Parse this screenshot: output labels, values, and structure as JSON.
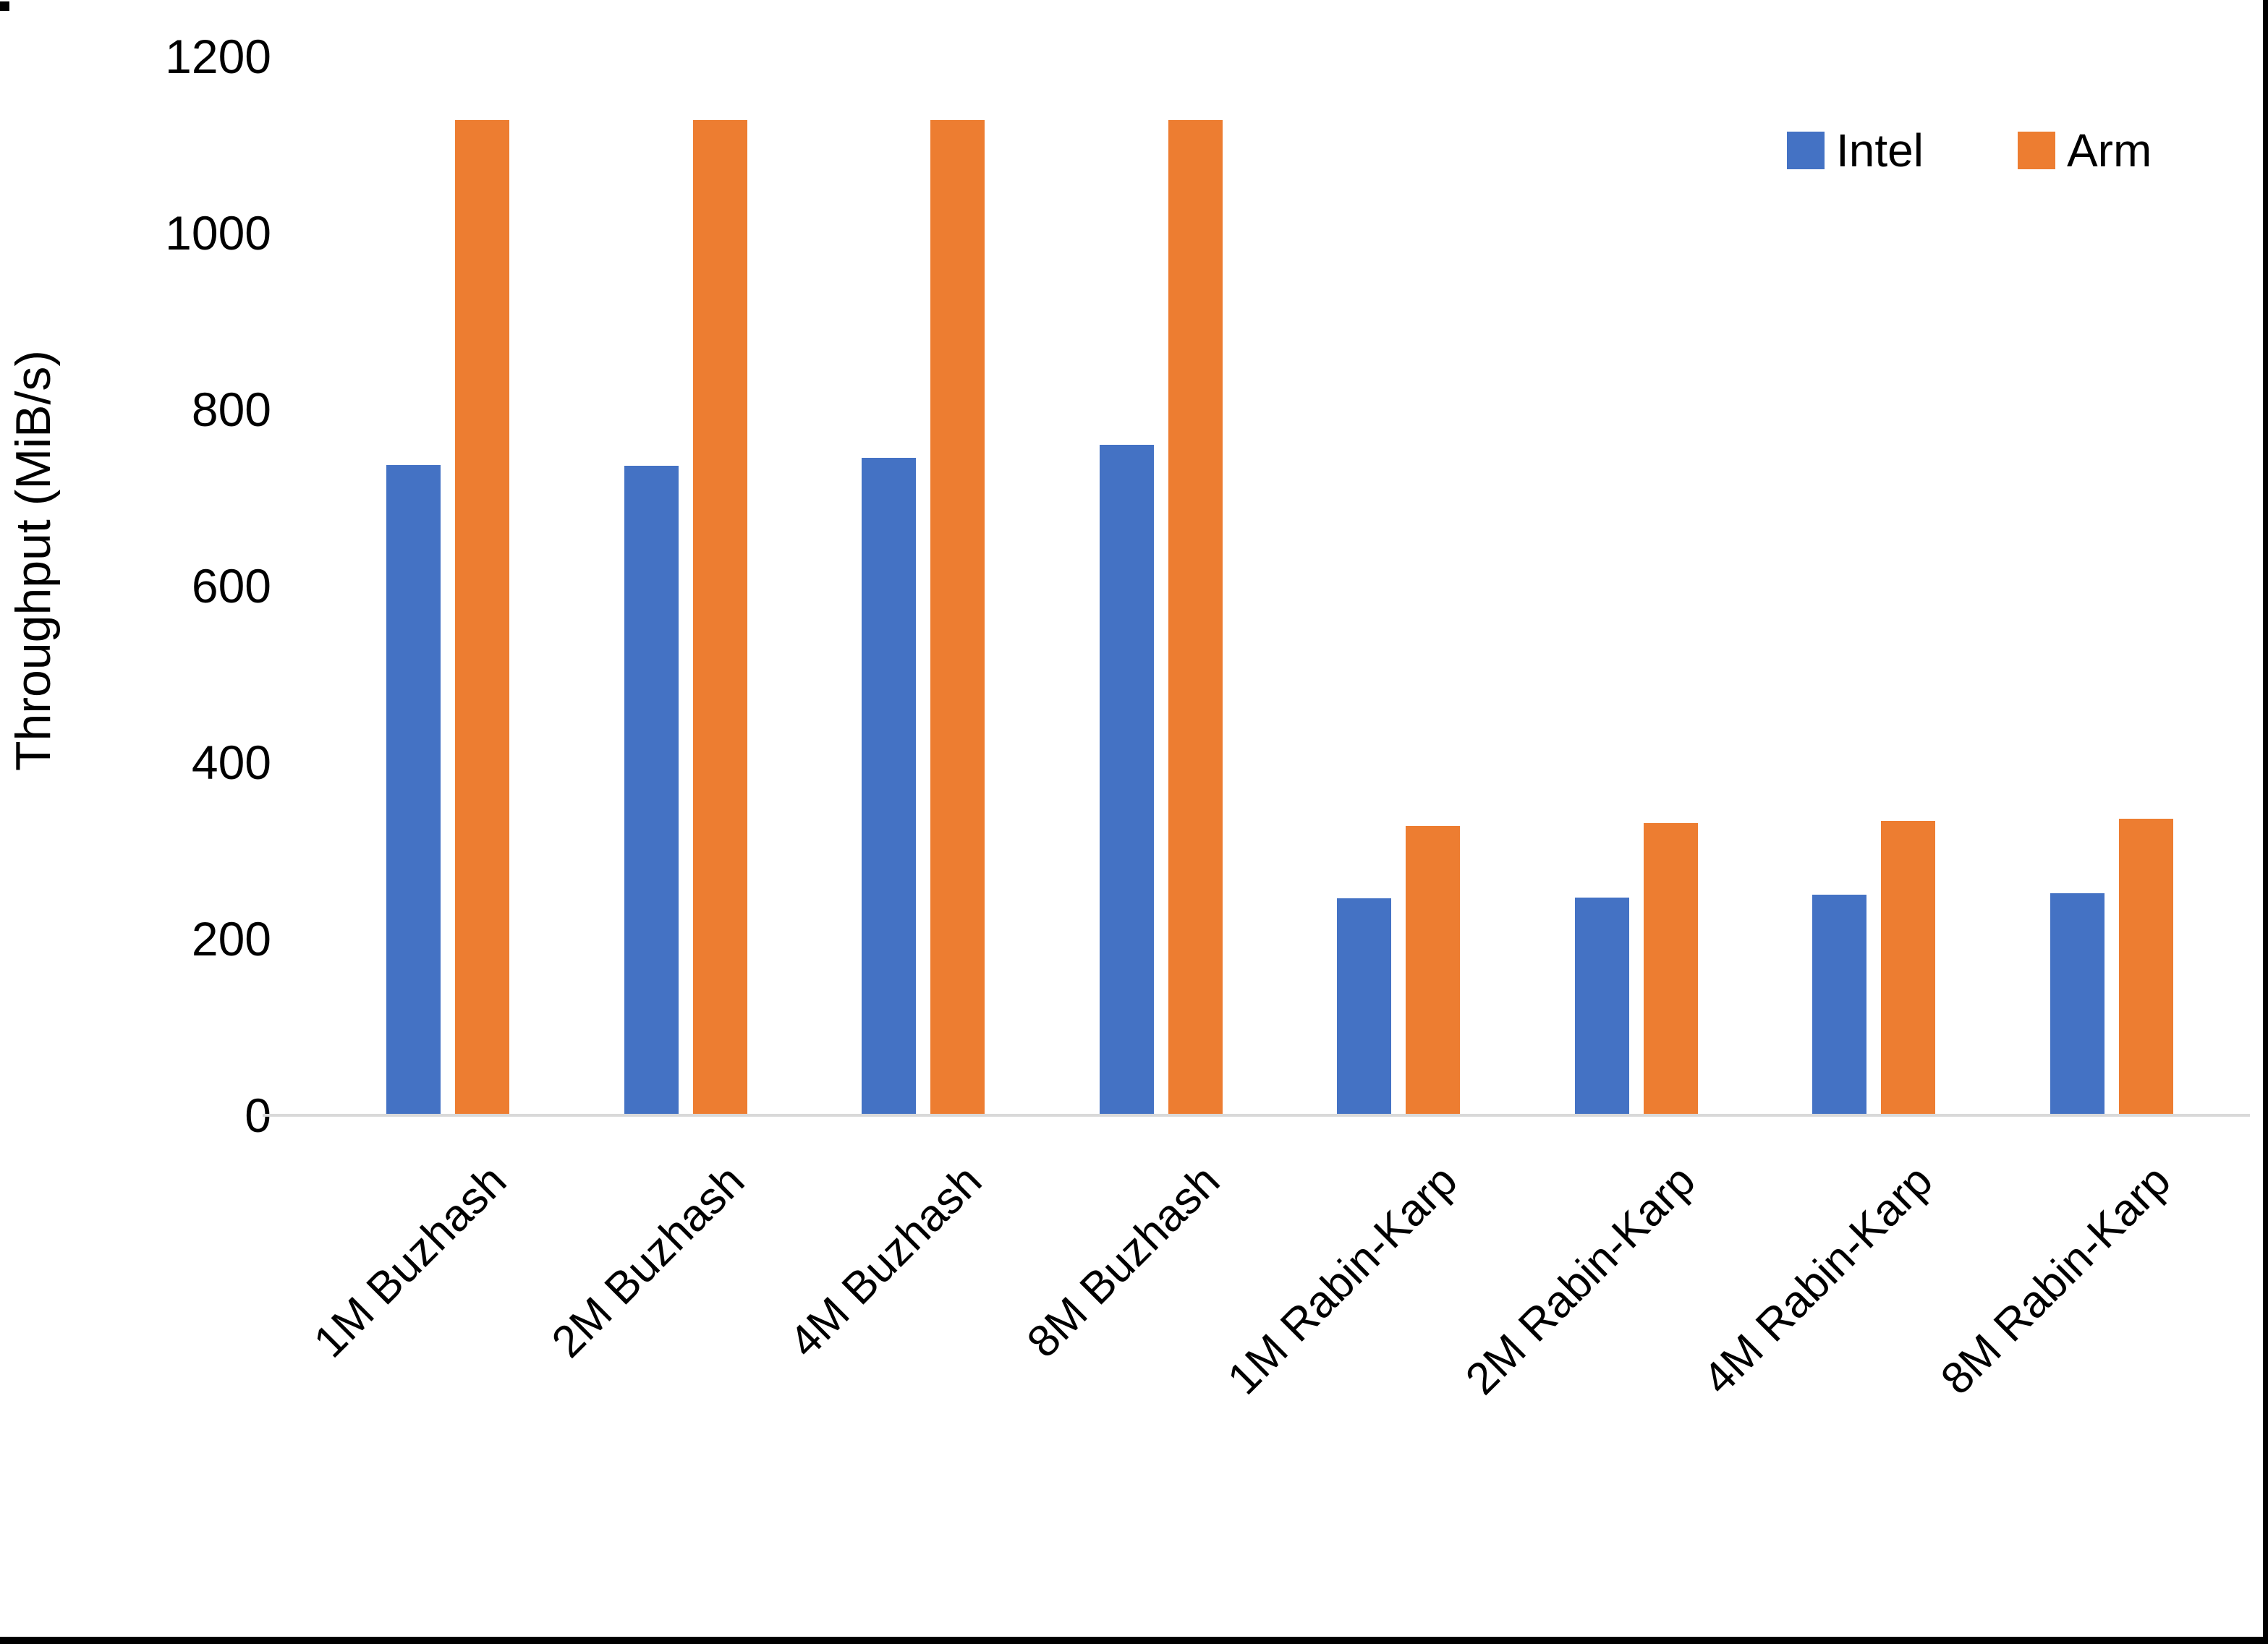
{
  "chart_data": {
    "type": "bar",
    "title": "",
    "categories": [
      "1M Buzhash",
      "2M Buzhash",
      "4M Buzhash",
      "8M Buzhash",
      "1M Rabin-Karp",
      "2M Rabin-Karp",
      "4M Rabin-Karp",
      "8M Rabin-Karp"
    ],
    "series": [
      {
        "name": "Intel",
        "color": "#4472C4",
        "values": [
          737,
          736,
          745,
          760,
          246,
          247,
          250,
          252
        ]
      },
      {
        "name": "Arm",
        "color": "#ED7D31",
        "values": [
          1128,
          1128,
          1128,
          1128,
          328,
          331,
          334,
          336
        ]
      }
    ],
    "xlabel": "",
    "ylabel": "Throughput (MiB/s)",
    "ylim": [
      0,
      1200
    ],
    "y_ticks": [
      0,
      200,
      400,
      600,
      800,
      1000,
      1200
    ],
    "grid": false,
    "legend_position": "top-right",
    "axis_line_color": "#D9D9D9",
    "text_color": "#000000"
  }
}
